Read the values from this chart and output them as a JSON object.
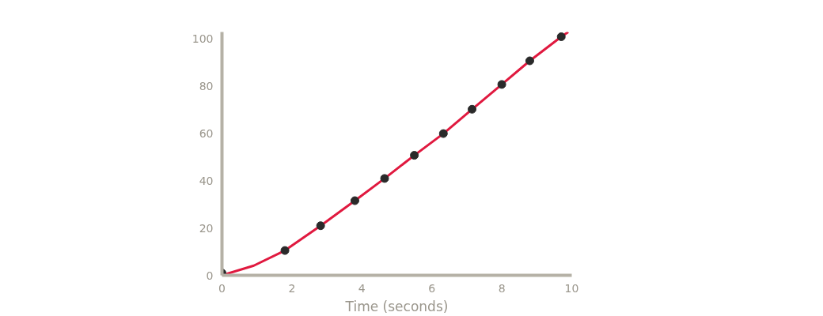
{
  "chart_data": {
    "type": "line",
    "xlabel": "Time (seconds)",
    "xlim": [
      0,
      10
    ],
    "ylim": [
      0,
      103
    ],
    "xticks": [
      0,
      2,
      4,
      6,
      8,
      10
    ],
    "yticks": [
      0,
      20,
      40,
      60,
      80,
      100
    ],
    "grid": false,
    "series": [
      {
        "color": "#e0193f",
        "marker": "none",
        "x": [
          0,
          0.91,
          1.8,
          2.82,
          3.8,
          4.65,
          5.5,
          6.33,
          7.15,
          8.0,
          8.8,
          9.7,
          9.9
        ],
        "values": [
          0,
          4.1,
          10.5,
          21,
          31.6,
          41,
          50.8,
          60,
          70.3,
          80.8,
          90.8,
          101,
          103
        ]
      },
      {
        "type": "scatter",
        "color": "#2a2a2a",
        "marker": "circle",
        "x": [
          0,
          1.8,
          2.82,
          3.8,
          4.65,
          5.5,
          6.33,
          7.15,
          8.0,
          8.8,
          9.7
        ],
        "values": [
          1,
          10.5,
          21,
          31.6,
          41,
          50.8,
          60,
          70.3,
          80.8,
          90.8,
          101
        ]
      }
    ]
  }
}
